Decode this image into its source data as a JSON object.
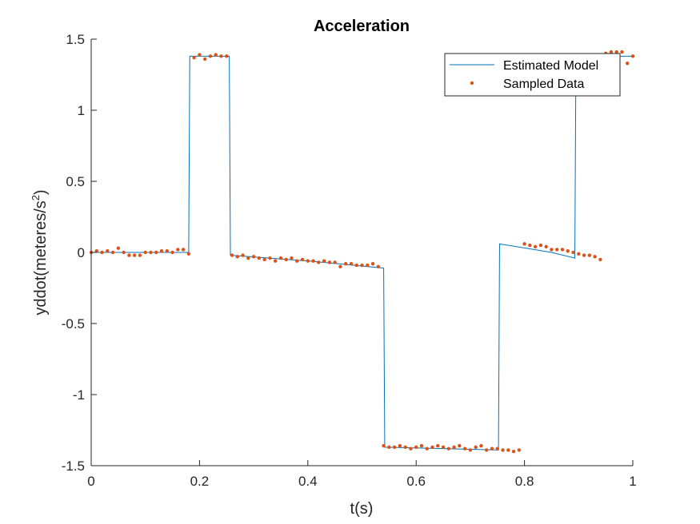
{
  "chart_data": {
    "type": "line",
    "title": "Acceleration",
    "xlabel": "t(s)",
    "ylabel_main": "yddot(meteres/s",
    "ylabel_sup": "2",
    "ylabel_close": ")",
    "xlim": [
      0,
      1
    ],
    "ylim": [
      -1.5,
      1.5
    ],
    "xticks": [
      0,
      0.2,
      0.4,
      0.6,
      0.8,
      1
    ],
    "xtick_labels": [
      "0",
      "0.2",
      "0.4",
      "0.6",
      "0.8",
      "1"
    ],
    "yticks": [
      -1.5,
      -1,
      -0.5,
      0,
      0.5,
      1,
      1.5
    ],
    "ytick_labels": [
      "-1.5",
      "-1",
      "-0.5",
      "0",
      "0.5",
      "1",
      "1.5"
    ],
    "grid": false,
    "legend_position": "top-right",
    "series": [
      {
        "name": "Estimated Model",
        "style": "line",
        "color": "#0072BD",
        "x": [
          0,
          0.1,
          0.18,
          0.182,
          0.22,
          0.255,
          0.257,
          0.4,
          0.54,
          0.542,
          0.65,
          0.752,
          0.754,
          0.85,
          0.893,
          0.895,
          0.95,
          1.0
        ],
        "y": [
          0.0,
          0.0,
          0.0,
          1.38,
          1.38,
          1.38,
          -0.02,
          -0.06,
          -0.11,
          -1.37,
          -1.38,
          -1.39,
          0.06,
          0.0,
          -0.04,
          1.38,
          1.38,
          1.38
        ]
      },
      {
        "name": "Sampled Data",
        "style": "markers",
        "color": "#D95319",
        "x": [
          0.0,
          0.01,
          0.02,
          0.03,
          0.04,
          0.05,
          0.06,
          0.07,
          0.08,
          0.09,
          0.1,
          0.11,
          0.12,
          0.13,
          0.14,
          0.15,
          0.16,
          0.17,
          0.18,
          0.19,
          0.2,
          0.21,
          0.22,
          0.23,
          0.24,
          0.25,
          0.26,
          0.27,
          0.28,
          0.29,
          0.3,
          0.31,
          0.32,
          0.33,
          0.34,
          0.35,
          0.36,
          0.37,
          0.38,
          0.39,
          0.4,
          0.41,
          0.42,
          0.43,
          0.44,
          0.45,
          0.46,
          0.47,
          0.48,
          0.49,
          0.5,
          0.51,
          0.52,
          0.53,
          0.54,
          0.55,
          0.56,
          0.57,
          0.58,
          0.59,
          0.6,
          0.61,
          0.62,
          0.63,
          0.64,
          0.65,
          0.66,
          0.67,
          0.68,
          0.69,
          0.7,
          0.71,
          0.72,
          0.73,
          0.74,
          0.75,
          0.76,
          0.77,
          0.78,
          0.79,
          0.8,
          0.81,
          0.82,
          0.83,
          0.84,
          0.85,
          0.86,
          0.87,
          0.88,
          0.89,
          0.9,
          0.91,
          0.92,
          0.93,
          0.94,
          0.95,
          0.96,
          0.97,
          0.98,
          0.99,
          1.0
        ],
        "y": [
          0.0,
          0.01,
          0.0,
          0.01,
          0.0,
          0.03,
          0.0,
          -0.02,
          -0.02,
          -0.02,
          0.0,
          0.0,
          0.0,
          0.01,
          0.01,
          0.0,
          0.02,
          0.02,
          -0.01,
          1.37,
          1.39,
          1.36,
          1.38,
          1.39,
          1.38,
          1.38,
          -0.02,
          -0.03,
          -0.02,
          -0.04,
          -0.03,
          -0.04,
          -0.05,
          -0.04,
          -0.06,
          -0.04,
          -0.05,
          -0.04,
          -0.06,
          -0.05,
          -0.06,
          -0.06,
          -0.07,
          -0.06,
          -0.07,
          -0.07,
          -0.1,
          -0.08,
          -0.08,
          -0.09,
          -0.09,
          -0.09,
          -0.08,
          -0.1,
          -1.36,
          -1.37,
          -1.37,
          -1.36,
          -1.37,
          -1.38,
          -1.37,
          -1.36,
          -1.38,
          -1.37,
          -1.36,
          -1.37,
          -1.38,
          -1.37,
          -1.36,
          -1.38,
          -1.39,
          -1.37,
          -1.36,
          -1.39,
          -1.38,
          -1.38,
          -1.39,
          -1.39,
          -1.4,
          -1.39,
          0.06,
          0.05,
          0.04,
          0.05,
          0.04,
          0.02,
          0.02,
          0.02,
          0.01,
          0.0,
          -0.01,
          -0.02,
          -0.02,
          -0.03,
          -0.05,
          1.4,
          1.41,
          1.41,
          1.41,
          1.33,
          1.38
        ]
      }
    ]
  }
}
